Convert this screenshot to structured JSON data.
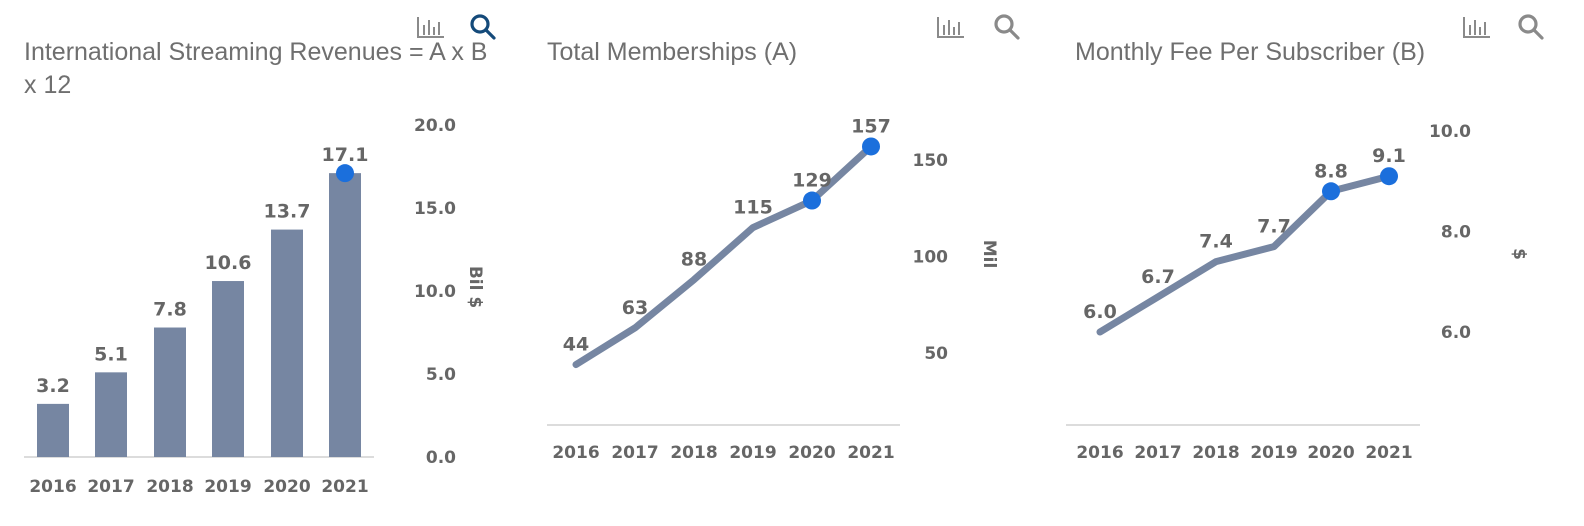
{
  "colors": {
    "series": "#7686a2",
    "highlight": "#1b6fdc",
    "text": "#666666",
    "axis": "#d0d0d0",
    "icon": "#8a8a8a",
    "search_active": "#144a7a"
  },
  "icons": {
    "chart_toggle": "bar-chart-icon",
    "search": "magnifier-icon"
  },
  "chart_data": [
    {
      "type": "bar",
      "title": "International Streaming Revenues = A x B x 12",
      "categories": [
        "2016",
        "2017",
        "2018",
        "2019",
        "2020",
        "2021"
      ],
      "series": [
        {
          "values": [
            3.2,
            5.1,
            7.8,
            10.6,
            13.7,
            17.1
          ]
        }
      ],
      "value_labels": [
        "3.2",
        "5.1",
        "7.8",
        "10.6",
        "13.7",
        "17.1"
      ],
      "highlighted_index": [
        5
      ],
      "yaxis": {
        "label": "Bil $",
        "ticks": [
          0,
          5,
          10,
          15,
          20
        ],
        "tick_labels": [
          "0.0",
          "5.0",
          "10.0",
          "15.0",
          "20.0"
        ],
        "position": "right"
      },
      "ylim": [
        0,
        20
      ],
      "grid": false
    },
    {
      "type": "line",
      "title": "Total Memberships (A)",
      "categories": [
        "2016",
        "2017",
        "2018",
        "2019",
        "2020",
        "2021"
      ],
      "series": [
        {
          "values": [
            44,
            63,
            88,
            115,
            129,
            157
          ]
        }
      ],
      "value_labels": [
        "44",
        "63",
        "88",
        "115",
        "129",
        "157"
      ],
      "highlighted_index": [
        4,
        5
      ],
      "yaxis": {
        "label": "Mil",
        "ticks": [
          50,
          100,
          150
        ],
        "tick_labels": [
          "50",
          "100",
          "150"
        ],
        "position": "right"
      },
      "ylim": [
        0,
        170
      ],
      "grid": false
    },
    {
      "type": "line",
      "title": "Monthly Fee Per Subscriber (B)",
      "categories": [
        "2016",
        "2017",
        "2018",
        "2019",
        "2020",
        "2021"
      ],
      "series": [
        {
          "values": [
            6.0,
            6.7,
            7.4,
            7.7,
            8.8,
            9.1
          ]
        }
      ],
      "value_labels": [
        "6.0",
        "6.7",
        "7.4",
        "7.7",
        "8.8",
        "9.1"
      ],
      "highlighted_index": [
        4,
        5
      ],
      "yaxis": {
        "label": "$",
        "ticks": [
          6,
          8,
          10
        ],
        "tick_labels": [
          "6.0",
          "8.0",
          "10.0"
        ],
        "position": "right"
      },
      "ylim": [
        4.2,
        10.5
      ],
      "grid": false
    }
  ]
}
